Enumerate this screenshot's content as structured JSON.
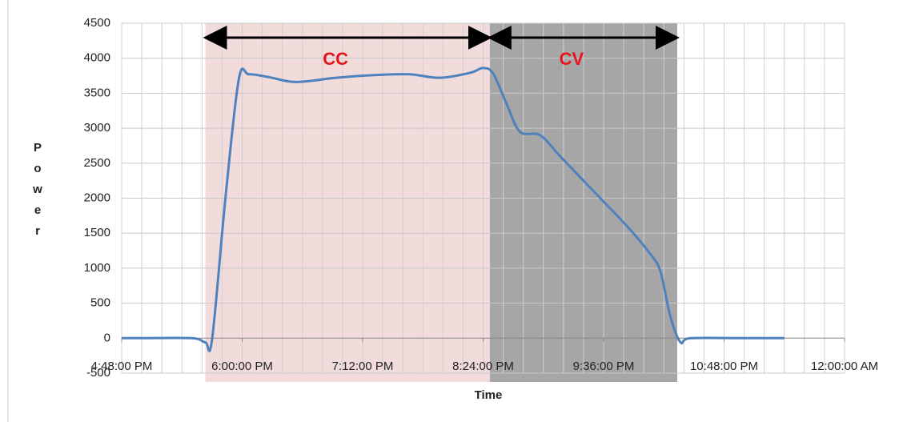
{
  "chart_data": {
    "type": "line",
    "x_label": "Time",
    "y_label": "Power",
    "xlim": [
      "16:48",
      "24:00"
    ],
    "xticks": [
      {
        "value": "16:48",
        "label": "4:48:00 PM"
      },
      {
        "value": "18:00",
        "label": "6:00:00 PM"
      },
      {
        "value": "19:12",
        "label": "7:12:00 PM"
      },
      {
        "value": "20:24",
        "label": "8:24:00 PM"
      },
      {
        "value": "21:36",
        "label": "9:36:00 PM"
      },
      {
        "value": "22:48",
        "label": "10:48:00 PM"
      },
      {
        "value": "24:00",
        "label": "12:00:00 AM"
      }
    ],
    "x_minor_grid_minutes": 12,
    "ylim": [
      -500,
      4500
    ],
    "yticks": [
      -500,
      0,
      500,
      1000,
      1500,
      2000,
      2500,
      3000,
      3500,
      4000,
      4500
    ],
    "grid": true,
    "regions": [
      {
        "label": "CC",
        "start": "17:38",
        "end": "20:28",
        "color": "#f2dcdb"
      },
      {
        "label": "CV",
        "start": "20:28",
        "end": "22:20",
        "color": "#a6a6a6"
      }
    ],
    "x": [
      "16:48",
      "17:00",
      "17:30",
      "17:38",
      "17:42",
      "17:50",
      "17:58",
      "18:04",
      "18:16",
      "18:32",
      "18:56",
      "19:20",
      "19:40",
      "19:58",
      "20:16",
      "20:24",
      "20:30",
      "20:38",
      "20:46",
      "20:58",
      "21:10",
      "21:30",
      "21:50",
      "22:04",
      "22:10",
      "22:16",
      "22:22",
      "22:28",
      "23:00",
      "23:24"
    ],
    "series": [
      {
        "name": "Power",
        "color": "#4f81bd",
        "values": [
          0,
          0,
          0,
          -60,
          -20,
          2000,
          3700,
          3770,
          3730,
          3660,
          3720,
          3760,
          3770,
          3720,
          3790,
          3860,
          3780,
          3350,
          2950,
          2900,
          2600,
          2100,
          1600,
          1200,
          950,
          300,
          -60,
          0,
          0,
          0
        ]
      }
    ]
  }
}
